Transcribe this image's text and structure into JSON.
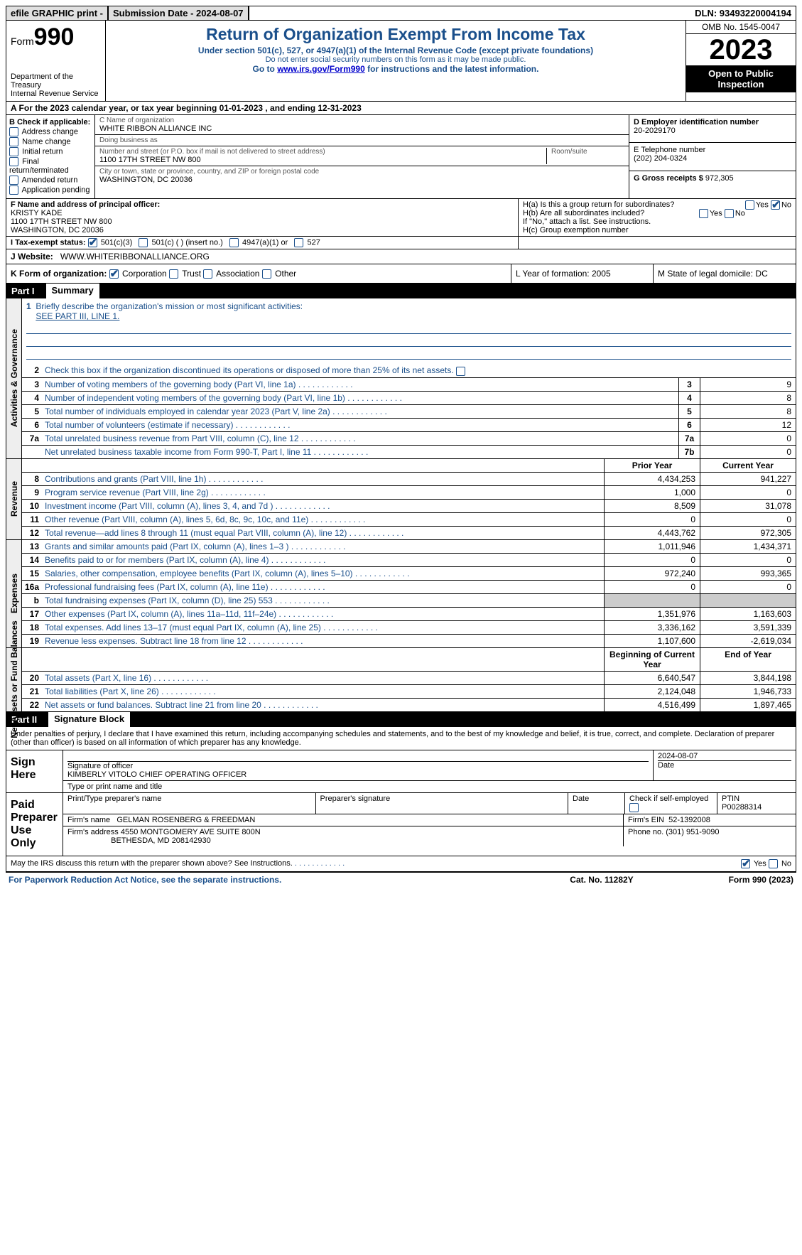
{
  "top": {
    "efile": "efile GRAPHIC print -",
    "submission": "Submission Date - 2024-08-07",
    "dln": "DLN: 93493220004194"
  },
  "header": {
    "form_label": "Form",
    "form_no": "990",
    "dept": "Department of the Treasury",
    "irs": "Internal Revenue Service",
    "title": "Return of Organization Exempt From Income Tax",
    "sub1": "Under section 501(c), 527, or 4947(a)(1) of the Internal Revenue Code (except private foundations)",
    "sub2": "Do not enter social security numbers on this form as it may be made public.",
    "sub3_pre": "Go to ",
    "sub3_link": "www.irs.gov/Form990",
    "sub3_post": " for instructions and the latest information.",
    "omb": "OMB No. 1545-0047",
    "year": "2023",
    "open": "Open to Public Inspection"
  },
  "lineA": "A For the 2023 calendar year, or tax year beginning 01-01-2023   , and ending 12-31-2023",
  "B": {
    "label": "B Check if applicable:",
    "opts": [
      "Address change",
      "Name change",
      "Initial return",
      "Final return/terminated",
      "Amended return",
      "Application pending"
    ]
  },
  "C": {
    "name_lab": "C Name of organization",
    "name": "WHITE RIBBON ALLIANCE INC",
    "dba_lab": "Doing business as",
    "dba": "",
    "street_lab": "Number and street (or P.O. box if mail is not delivered to street address)",
    "room_lab": "Room/suite",
    "street": "1100 17TH STREET NW 800",
    "city_lab": "City or town, state or province, country, and ZIP or foreign postal code",
    "city": "WASHINGTON, DC  20036"
  },
  "D": {
    "lab": "D Employer identification number",
    "val": "20-2029170"
  },
  "E": {
    "lab": "E Telephone number",
    "val": "(202) 204-0324"
  },
  "G": {
    "lab": "G Gross receipts $",
    "val": "972,305"
  },
  "F": {
    "lab": "F  Name and address of principal officer:",
    "l1": "KRISTY KADE",
    "l2": "1100 17TH STREET NW 800",
    "l3": "WASHINGTON, DC  20036"
  },
  "H": {
    "a_lab": "H(a)  Is this a group return for subordinates?",
    "a_yes": "Yes",
    "a_no": "No",
    "b_lab": "H(b)  Are all subordinates included?",
    "b_note": "If \"No,\" attach a list. See instructions.",
    "c_lab": "H(c)  Group exemption number"
  },
  "I": {
    "lab": "I   Tax-exempt status:",
    "o1": "501(c)(3)",
    "o2": "501(c) (  ) (insert no.)",
    "o3": "4947(a)(1) or",
    "o4": "527"
  },
  "J": {
    "lab": "J   Website:",
    "val": "WWW.WHITERIBBONALLIANCE.ORG"
  },
  "K": {
    "lab": "K Form of organization:",
    "o1": "Corporation",
    "o2": "Trust",
    "o3": "Association",
    "o4": "Other"
  },
  "L": "L Year of formation: 2005",
  "M": "M State of legal domicile: DC",
  "part1": {
    "label": "Part I",
    "title": "Summary"
  },
  "summary": {
    "gov_label": "Activities & Governance",
    "rev_label": "Revenue",
    "exp_label": "Expenses",
    "net_label": "Net Assets or Fund Balances",
    "q1": "Briefly describe the organization's mission or most significant activities:",
    "q1v": "SEE PART III, LINE 1.",
    "q2": "Check this box      if the organization discontinued its operations or disposed of more than 25% of its net assets.",
    "lines_gov": [
      {
        "n": "3",
        "d": "Number of voting members of the governing body (Part VI, line 1a)",
        "box": "3",
        "v": "9"
      },
      {
        "n": "4",
        "d": "Number of independent voting members of the governing body (Part VI, line 1b)",
        "box": "4",
        "v": "8"
      },
      {
        "n": "5",
        "d": "Total number of individuals employed in calendar year 2023 (Part V, line 2a)",
        "box": "5",
        "v": "8"
      },
      {
        "n": "6",
        "d": "Total number of volunteers (estimate if necessary)",
        "box": "6",
        "v": "12"
      },
      {
        "n": "7a",
        "d": "Total unrelated business revenue from Part VIII, column (C), line 12",
        "box": "7a",
        "v": "0"
      },
      {
        "n": "",
        "d": "Net unrelated business taxable income from Form 990-T, Part I, line 11",
        "box": "7b",
        "v": "0"
      }
    ],
    "col_prior": "Prior Year",
    "col_curr": "Current Year",
    "lines_rev": [
      {
        "n": "8",
        "d": "Contributions and grants (Part VIII, line 1h)",
        "p": "4,434,253",
        "c": "941,227"
      },
      {
        "n": "9",
        "d": "Program service revenue (Part VIII, line 2g)",
        "p": "1,000",
        "c": "0"
      },
      {
        "n": "10",
        "d": "Investment income (Part VIII, column (A), lines 3, 4, and 7d )",
        "p": "8,509",
        "c": "31,078"
      },
      {
        "n": "11",
        "d": "Other revenue (Part VIII, column (A), lines 5, 6d, 8c, 9c, 10c, and 11e)",
        "p": "0",
        "c": "0"
      },
      {
        "n": "12",
        "d": "Total revenue—add lines 8 through 11 (must equal Part VIII, column (A), line 12)",
        "p": "4,443,762",
        "c": "972,305"
      }
    ],
    "lines_exp": [
      {
        "n": "13",
        "d": "Grants and similar amounts paid (Part IX, column (A), lines 1–3 )",
        "p": "1,011,946",
        "c": "1,434,371"
      },
      {
        "n": "14",
        "d": "Benefits paid to or for members (Part IX, column (A), line 4)",
        "p": "0",
        "c": "0"
      },
      {
        "n": "15",
        "d": "Salaries, other compensation, employee benefits (Part IX, column (A), lines 5–10)",
        "p": "972,240",
        "c": "993,365"
      },
      {
        "n": "16a",
        "d": "Professional fundraising fees (Part IX, column (A), line 11e)",
        "p": "0",
        "c": "0"
      },
      {
        "n": "b",
        "d": "Total fundraising expenses (Part IX, column (D), line 25) 553",
        "p": "",
        "c": "",
        "shade": true
      },
      {
        "n": "17",
        "d": "Other expenses (Part IX, column (A), lines 11a–11d, 11f–24e)",
        "p": "1,351,976",
        "c": "1,163,603"
      },
      {
        "n": "18",
        "d": "Total expenses. Add lines 13–17 (must equal Part IX, column (A), line 25)",
        "p": "3,336,162",
        "c": "3,591,339"
      },
      {
        "n": "19",
        "d": "Revenue less expenses. Subtract line 18 from line 12",
        "p": "1,107,600",
        "c": "-2,619,034"
      }
    ],
    "col_beg": "Beginning of Current Year",
    "col_end": "End of Year",
    "lines_net": [
      {
        "n": "20",
        "d": "Total assets (Part X, line 16)",
        "p": "6,640,547",
        "c": "3,844,198"
      },
      {
        "n": "21",
        "d": "Total liabilities (Part X, line 26)",
        "p": "2,124,048",
        "c": "1,946,733"
      },
      {
        "n": "22",
        "d": "Net assets or fund balances. Subtract line 21 from line 20",
        "p": "4,516,499",
        "c": "1,897,465"
      }
    ]
  },
  "part2": {
    "label": "Part II",
    "title": "Signature Block"
  },
  "sig": {
    "decl": "Under penalties of perjury, I declare that I have examined this return, including accompanying schedules and statements, and to the best of my knowledge and belief, it is true, correct, and complete. Declaration of preparer (other than officer) is based on all information of which preparer has any knowledge.",
    "sign_here": "Sign Here",
    "sig_date": "2024-08-07",
    "sig_lab": "Signature of officer",
    "officer": "KIMBERLY VITOLO  CHIEF OPERATING OFFICER",
    "type_lab": "Type or print name and title",
    "date_lab": "Date",
    "paid": "Paid Preparer Use Only",
    "prep_name_lab": "Print/Type preparer's name",
    "prep_sig_lab": "Preparer's signature",
    "check_self": "Check        if self-employed",
    "ptin_lab": "PTIN",
    "ptin": "P00288314",
    "firm_name_lab": "Firm's name",
    "firm_name": "GELMAN ROSENBERG & FREEDMAN",
    "firm_ein_lab": "Firm's EIN",
    "firm_ein": "52-1392008",
    "firm_addr_lab": "Firm's address",
    "firm_addr1": "4550 MONTGOMERY AVE SUITE 800N",
    "firm_addr2": "BETHESDA, MD  208142930",
    "phone_lab": "Phone no.",
    "phone": "(301) 951-9090",
    "discuss": "May the IRS discuss this return with the preparer shown above? See Instructions.",
    "yes": "Yes",
    "no": "No"
  },
  "footer": {
    "l": "For Paperwork Reduction Act Notice, see the separate instructions.",
    "m": "Cat. No. 11282Y",
    "r": "Form 990 (2023)"
  }
}
